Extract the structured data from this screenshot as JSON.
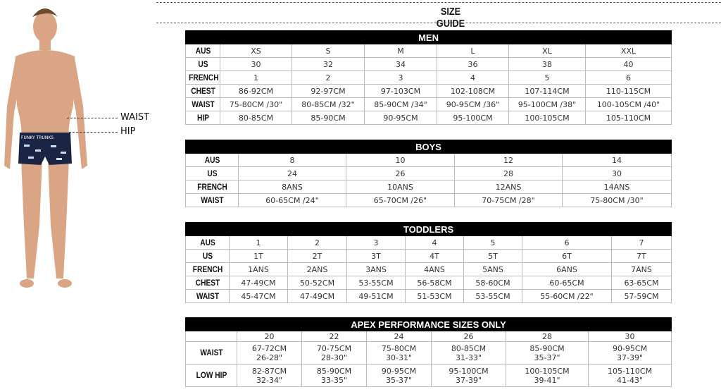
{
  "title": "SIZE GUIDE",
  "figure": {
    "waist_label": "WAIST",
    "hip_label": "HIP",
    "brand": "FUNKY TRUNKS"
  },
  "tables": {
    "men": {
      "header": "MEN",
      "widths": [
        49,
        102,
        103,
        103,
        102,
        109,
        122
      ],
      "rows": [
        [
          "AUS",
          "XS",
          "S",
          "M",
          "L",
          "XL",
          "XXL"
        ],
        [
          "US",
          "30",
          "32",
          "34",
          "36",
          "38",
          "40"
        ],
        [
          "FRENCH",
          "1",
          "2",
          "3",
          "4",
          "5",
          "6"
        ],
        [
          "CHEST",
          "86-92CM",
          "92-97CM",
          "97-103CM",
          "102-108CM",
          "107-114CM",
          "110-115CM"
        ],
        [
          "WAIST",
          "75-80CM /30\"",
          "80-85CM /32\"",
          "85-90CM /34\"",
          "90-95CM /36\"",
          "95-100CM /38\"",
          "100-105CM /40\""
        ],
        [
          "HIP",
          "80-85CM",
          "85-90CM",
          "90-95CM",
          "95-100CM",
          "100-105CM",
          "105-110CM"
        ]
      ]
    },
    "boys": {
      "header": "BOYS",
      "widths": [
        75,
        153,
        154,
        153,
        155
      ],
      "rows": [
        [
          "AUS",
          "8",
          "10",
          "12",
          "14"
        ],
        [
          "US",
          "24",
          "26",
          "28",
          "30"
        ],
        [
          "FRENCH",
          "8ANS",
          "10ANS",
          "12ANS",
          "14ANS"
        ],
        [
          "WAIST",
          "60-65CM /24\"",
          "65-70CM /26\"",
          "70-75CM /28\"",
          "75-80CM /30\""
        ]
      ]
    },
    "toddlers": {
      "header": "TODDLERS",
      "widths": [
        62,
        83,
        84,
        83,
        83,
        83,
        127,
        85
      ],
      "rows": [
        [
          "AUS",
          "1",
          "2",
          "3",
          "4",
          "5",
          "6",
          "7"
        ],
        [
          "US",
          "1T",
          "2T",
          "3T",
          "4T",
          "5T",
          "6T",
          "7T"
        ],
        [
          "FRENCH",
          "1ANS",
          "2ANS",
          "3ANS",
          "4ANS",
          "5ANS",
          "6ANS",
          "7ANS"
        ],
        [
          "CHEST",
          "47-49CM",
          "50-52CM",
          "53-55CM",
          "56-58CM",
          "58-60CM",
          "60-65CM",
          "63-65CM"
        ],
        [
          "WAIST",
          "45-47CM",
          "47-49CM",
          "49-51CM",
          "51-53CM",
          "53-55CM",
          "55-60CM /22\"",
          "57-59CM"
        ]
      ]
    },
    "apex": {
      "header": "APEX PERFORMANCE SIZES ONLY",
      "widths": [
        73,
        92,
        92,
        92,
        106,
        117,
        118
      ],
      "rows": [
        [
          "",
          "20",
          "22",
          "24",
          "26",
          "28",
          "30"
        ],
        [
          "WAIST",
          "67-72CM\n26-28\"",
          "70-75CM\n28-30\"",
          "75-80CM\n30-31\"",
          "80-85CM\n31-33\"",
          "85-90CM\n35-37\"",
          "90-95CM\n37-39\""
        ],
        [
          "LOW HIP",
          "82-87CM\n32-34\"",
          "85-90CM\n33-35\"",
          "90-95CM\n35-37\"",
          "95-100CM\n37-39\"",
          "100-105CM\n39-41\"",
          "105-110CM\n41-43\""
        ]
      ]
    }
  }
}
